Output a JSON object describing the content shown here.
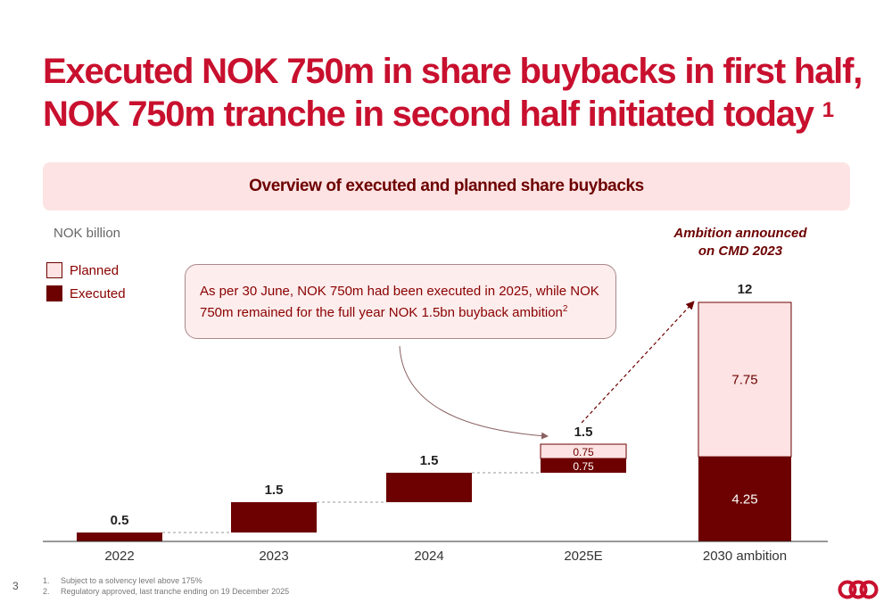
{
  "title": {
    "line1": "Executed NOK 750m in share buybacks in first half,",
    "line2": "NOK 750m tranche in second half initiated today",
    "footnote_ref": "1"
  },
  "banner": "Overview of executed and planned share buybacks",
  "unit_label": "NOK billion",
  "legend": {
    "planned": "Planned",
    "executed": "Executed"
  },
  "callout": {
    "text": "As per 30 June, NOK 750m had been executed in 2025, while NOK 750m remained for the full year NOK 1.5bn buyback ambition",
    "footnote_ref": "2"
  },
  "ambition_note": {
    "line1": "Ambition announced",
    "line2": "on CMD 2023"
  },
  "colors": {
    "executed": "#6d0000",
    "planned": "#fde3e3",
    "title": "#c8102e"
  },
  "chart_data": {
    "type": "bar",
    "categories": [
      "2022",
      "2023",
      "2024",
      "2025E",
      "2030 ambition"
    ],
    "series": [
      {
        "name": "Executed",
        "values": [
          0.5,
          1.5,
          1.5,
          0.75,
          4.25
        ]
      },
      {
        "name": "Planned",
        "values": [
          0,
          0,
          0,
          0.75,
          7.75
        ]
      }
    ],
    "totals": [
      0.5,
      1.5,
      1.5,
      1.5,
      12
    ],
    "total_labels": [
      "0.5",
      "1.5",
      "1.5",
      "1.5",
      "12"
    ],
    "segment_labels": {
      "2025E": {
        "executed": "0.75",
        "planned": "0.75"
      },
      "2030 ambition": {
        "executed": "4.25",
        "planned": "7.75"
      }
    }
  },
  "footnotes": [
    {
      "num": "1.",
      "text": "Subject to a solvency level above 175%"
    },
    {
      "num": "2.",
      "text": "Regulatory approved, last tranche ending on 19 December 2025"
    }
  ],
  "page_number": "3"
}
